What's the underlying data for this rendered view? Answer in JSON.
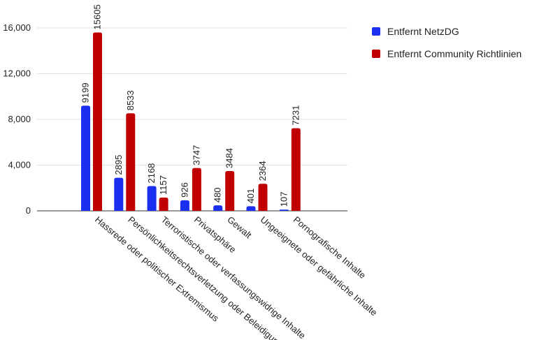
{
  "chart_data": {
    "type": "bar",
    "title": "",
    "xlabel": "",
    "ylabel": "",
    "ylim": [
      0,
      16000
    ],
    "yticks": [
      0,
      4000,
      8000,
      12000,
      16000
    ],
    "ytick_labels": [
      "0",
      "4,000",
      "8,000",
      "12,000",
      "16,000"
    ],
    "grid": true,
    "legend_position": "top-right",
    "categories": [
      "Hassrede oder politischer Extremismus",
      "Persönlichkeitsrechtsverletzung oder Beleidigung",
      "Terroristische oder verfassungswidrige Inhalte",
      "Privatsphäre",
      "Gewalt",
      "Ungeeignete oder gefährliche Inhalte",
      "Pornografische Inhalte"
    ],
    "series": [
      {
        "name": "Entfernt NetzDG",
        "color": "#1a2ff0",
        "values": [
          9199,
          2895,
          2168,
          926,
          480,
          401,
          107
        ]
      },
      {
        "name": "Entfernt Community Richtlinien",
        "color": "#c00000",
        "values": [
          15605,
          8533,
          1157,
          3747,
          3484,
          2364,
          7231
        ]
      }
    ]
  }
}
